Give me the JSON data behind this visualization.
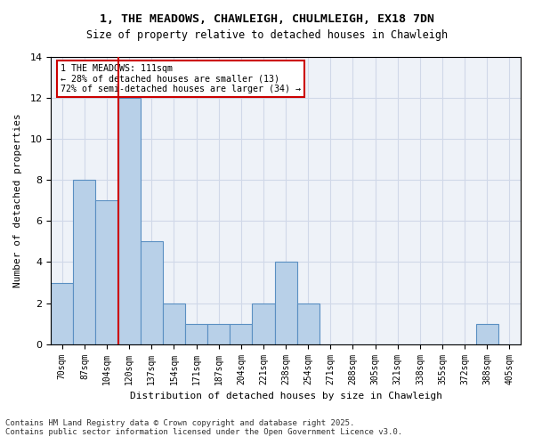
{
  "title_line1": "1, THE MEADOWS, CHAWLEIGH, CHULMLEIGH, EX18 7DN",
  "title_line2": "Size of property relative to detached houses in Chawleigh",
  "xlabel": "Distribution of detached houses by size in Chawleigh",
  "ylabel": "Number of detached properties",
  "categories": [
    "70sqm",
    "87sqm",
    "104sqm",
    "120sqm",
    "137sqm",
    "154sqm",
    "171sqm",
    "187sqm",
    "204sqm",
    "221sqm",
    "238sqm",
    "254sqm",
    "271sqm",
    "288sqm",
    "305sqm",
    "321sqm",
    "338sqm",
    "355sqm",
    "372sqm",
    "388sqm",
    "405sqm"
  ],
  "values": [
    3,
    8,
    7,
    12,
    5,
    2,
    1,
    1,
    1,
    2,
    4,
    2,
    0,
    0,
    0,
    0,
    0,
    0,
    0,
    1,
    0
  ],
  "bar_color": "#b8d0e8",
  "bar_edge_color": "#5a8fc2",
  "grid_color": "#d0d8e8",
  "bg_color": "#eef2f8",
  "red_line_x": 2.5,
  "annotation_text": "1 THE MEADOWS: 111sqm\n← 28% of detached houses are smaller (13)\n72% of semi-detached houses are larger (34) →",
  "annotation_box_color": "#ffffff",
  "annotation_box_edge": "#cc0000",
  "red_line_color": "#cc0000",
  "footer_line1": "Contains HM Land Registry data © Crown copyright and database right 2025.",
  "footer_line2": "Contains public sector information licensed under the Open Government Licence v3.0.",
  "ylim": [
    0,
    14
  ],
  "yticks": [
    0,
    2,
    4,
    6,
    8,
    10,
    12,
    14
  ]
}
